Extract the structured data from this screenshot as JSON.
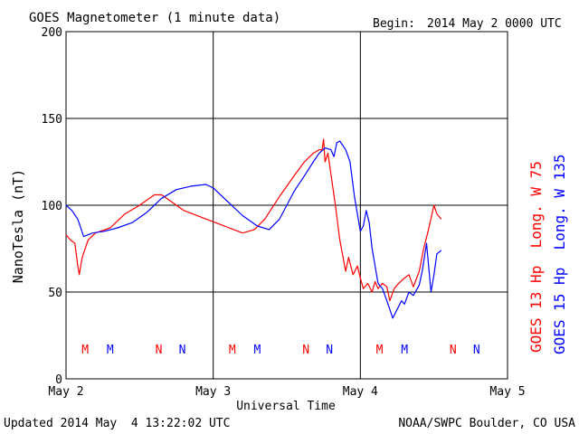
{
  "header": {
    "title": "GOES Magnetometer (1 minute data)",
    "begin_label": "Begin:",
    "begin_value": "2014 May 2 0000 UTC"
  },
  "footer": {
    "updated": "Updated 2014 May  4 13:22:02 UTC",
    "credit": "NOAA/SWPC Boulder, CO USA"
  },
  "colors": {
    "goes13": "#ff0000",
    "goes15": "#0000ff",
    "grid": "#000000",
    "background": "#ffffff"
  },
  "chart_data": {
    "type": "line",
    "title": "GOES Magnetometer (1 minute data)",
    "xlabel": "Universal Time",
    "ylabel": "NanoTesla (nT)",
    "ylim": [
      0,
      200
    ],
    "yticks": [
      0,
      50,
      100,
      150,
      200
    ],
    "xlim": [
      0,
      3
    ],
    "xticks": [
      0,
      1,
      2,
      3
    ],
    "xtick_labels": [
      "May 2",
      "May 3",
      "May 4",
      "May 5"
    ],
    "grid": true,
    "legend_placement": "right (rotated)",
    "series": [
      {
        "name": "GOES 13 Hp  Long. W 75",
        "color": "#ff0000",
        "x": [
          0.0,
          0.03,
          0.06,
          0.08,
          0.09,
          0.11,
          0.15,
          0.2,
          0.3,
          0.4,
          0.5,
          0.55,
          0.6,
          0.65,
          0.7,
          0.75,
          0.8,
          0.86,
          1.2,
          1.28,
          1.35,
          1.45,
          1.55,
          1.62,
          1.68,
          1.72,
          1.74,
          1.75,
          1.76,
          1.78,
          1.8,
          1.83,
          1.86,
          1.9,
          1.92,
          1.95,
          1.98,
          2.0,
          2.02,
          2.05,
          2.08,
          2.1,
          2.12,
          2.15,
          2.18,
          2.2,
          2.23,
          2.26,
          2.3,
          2.33,
          2.36,
          2.4,
          2.43,
          2.46,
          2.5,
          2.52,
          2.55
        ],
        "y": [
          83,
          80,
          78,
          65,
          60,
          70,
          80,
          84,
          87,
          95,
          100,
          103,
          106,
          106,
          103,
          100,
          97,
          95,
          84,
          86,
          92,
          105,
          117,
          125,
          130,
          132,
          132,
          138,
          125,
          130,
          118,
          100,
          80,
          62,
          70,
          60,
          65,
          58,
          52,
          55,
          50,
          56,
          52,
          55,
          53,
          45,
          52,
          55,
          58,
          60,
          53,
          62,
          75,
          85,
          100,
          95,
          92
        ]
      },
      {
        "name": "GOES 15 Hp  Long. W 135",
        "color": "#0000ff",
        "x": [
          0.0,
          0.04,
          0.08,
          0.12,
          0.18,
          0.26,
          0.35,
          0.45,
          0.55,
          0.65,
          0.75,
          0.85,
          0.95,
          1.0,
          1.1,
          1.2,
          1.3,
          1.38,
          1.45,
          1.5,
          1.55,
          1.62,
          1.68,
          1.72,
          1.76,
          1.8,
          1.82,
          1.84,
          1.86,
          1.9,
          1.93,
          1.96,
          2.0,
          2.02,
          2.04,
          2.06,
          2.08,
          2.1,
          2.12,
          2.15,
          2.18,
          2.2,
          2.22,
          2.25,
          2.28,
          2.3,
          2.33,
          2.36,
          2.4,
          2.42,
          2.45,
          2.48,
          2.5,
          2.52,
          2.55
        ],
        "y": [
          100,
          97,
          92,
          82,
          84,
          85,
          87,
          90,
          96,
          104,
          109,
          111,
          112,
          110,
          102,
          94,
          88,
          86,
          92,
          100,
          108,
          117,
          125,
          130,
          133,
          132,
          128,
          136,
          137,
          132,
          125,
          105,
          85,
          88,
          97,
          90,
          75,
          65,
          55,
          52,
          45,
          40,
          35,
          40,
          45,
          43,
          50,
          48,
          54,
          62,
          78,
          50,
          60,
          72,
          74
        ]
      }
    ],
    "event_markers": [
      {
        "x": 0.13,
        "label": "M",
        "color": "#ff0000"
      },
      {
        "x": 0.3,
        "label": "M",
        "color": "#0000ff"
      },
      {
        "x": 0.63,
        "label": "N",
        "color": "#ff0000"
      },
      {
        "x": 0.79,
        "label": "N",
        "color": "#0000ff"
      },
      {
        "x": 1.13,
        "label": "M",
        "color": "#ff0000"
      },
      {
        "x": 1.3,
        "label": "M",
        "color": "#0000ff"
      },
      {
        "x": 1.63,
        "label": "N",
        "color": "#ff0000"
      },
      {
        "x": 1.79,
        "label": "N",
        "color": "#0000ff"
      },
      {
        "x": 2.13,
        "label": "M",
        "color": "#ff0000"
      },
      {
        "x": 2.3,
        "label": "M",
        "color": "#0000ff"
      },
      {
        "x": 2.63,
        "label": "N",
        "color": "#ff0000"
      },
      {
        "x": 2.79,
        "label": "N",
        "color": "#0000ff"
      }
    ]
  }
}
